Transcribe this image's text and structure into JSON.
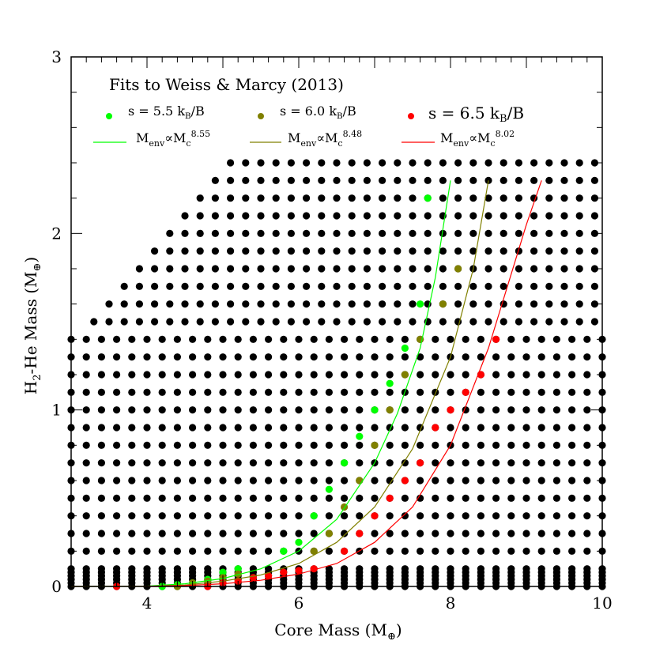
{
  "chart_data": {
    "type": "scatter",
    "title": "Fits to Weiss & Marcy (2013)",
    "xlabel": "Core Mass (M",
    "xlabel_symbol": "⊕",
    "ylabel": "H",
    "ylabel_sub": "2",
    "ylabel_mid": "-He Mass (M",
    "ylabel_symbol": "⊕",
    "xlim": [
      3,
      10
    ],
    "ylim": [
      0,
      3
    ],
    "x_ticks": [
      "4",
      "6",
      "8",
      "10"
    ],
    "x_tick_values": [
      4,
      6,
      8,
      10
    ],
    "y_ticks": [
      "0",
      "1",
      "2",
      "3"
    ],
    "y_tick_values": [
      0,
      1,
      2,
      3
    ],
    "grid_colors": {
      "default": "#000000"
    },
    "grid": {
      "x_step": 0.2,
      "y_step": 0.1,
      "low_y_values": [
        0.0,
        0.02,
        0.04,
        0.06,
        0.08,
        0.1
      ],
      "x_max": 10.0,
      "row_x_start": [
        {
          "y_from": 0.0,
          "y_to": 1.4,
          "x_start": 3.0
        },
        {
          "y_from": 1.5,
          "y_to": 1.5,
          "x_start": 3.3
        },
        {
          "y_from": 1.6,
          "y_to": 1.6,
          "x_start": 3.5
        },
        {
          "y_from": 1.7,
          "y_to": 1.7,
          "x_start": 3.7
        },
        {
          "y_from": 1.8,
          "y_to": 1.8,
          "x_start": 3.9
        },
        {
          "y_from": 1.9,
          "y_to": 1.9,
          "x_start": 4.1
        },
        {
          "y_from": 2.0,
          "y_to": 2.0,
          "x_start": 4.3
        },
        {
          "y_from": 2.1,
          "y_to": 2.1,
          "x_start": 4.5
        },
        {
          "y_from": 2.2,
          "y_to": 2.2,
          "x_start": 4.7
        },
        {
          "y_from": 2.3,
          "y_to": 2.3,
          "x_start": 4.9
        },
        {
          "y_from": 2.4,
          "y_to": 2.4,
          "x_start": 5.1
        }
      ]
    },
    "series": [
      {
        "name": "s = 5.5 k",
        "name_sub": "B",
        "name_tail": "/B",
        "fit_label": "M",
        "fit_label_sub": "env",
        "fit_label_mid": "∝M",
        "fit_label_sub2": "c",
        "fit_label_sup": "8.55",
        "color": "#00ff00",
        "points_x": [
          4.2,
          4.4,
          4.6,
          4.8,
          5.0,
          5.2,
          5.8,
          6.0,
          6.2,
          6.4,
          6.6,
          6.8,
          7.0,
          7.2,
          7.4,
          7.6,
          7.7
        ],
        "points_y": [
          0.0,
          0.01,
          0.02,
          0.04,
          0.08,
          0.1,
          0.2,
          0.25,
          0.4,
          0.55,
          0.7,
          0.85,
          1.0,
          1.15,
          1.35,
          1.6,
          2.2
        ],
        "fit_x": [
          3.0,
          4.0,
          4.5,
          5.0,
          5.5,
          6.0,
          6.5,
          7.0,
          7.3,
          7.6,
          7.8,
          8.0
        ],
        "fit_y": [
          0.0,
          0.002,
          0.015,
          0.045,
          0.1,
          0.2,
          0.38,
          0.7,
          0.98,
          1.35,
          1.75,
          2.3
        ]
      },
      {
        "name": "s = 6.0 k",
        "name_sub": "B",
        "name_tail": "/B",
        "fit_label": "M",
        "fit_label_sub": "env",
        "fit_label_mid": "∝M",
        "fit_label_sub2": "c",
        "fit_label_sup": "8.48",
        "color": "#808000",
        "points_x": [
          4.4,
          4.6,
          4.8,
          5.0,
          5.2,
          6.2,
          6.4,
          6.6,
          6.8,
          7.0,
          7.2,
          7.4,
          7.6,
          7.9,
          8.1
        ],
        "points_y": [
          0.0,
          0.02,
          0.03,
          0.05,
          0.07,
          0.2,
          0.3,
          0.45,
          0.6,
          0.8,
          1.0,
          1.2,
          1.4,
          1.6,
          1.8
        ],
        "fit_x": [
          3.0,
          4.0,
          4.5,
          5.0,
          5.5,
          6.0,
          6.5,
          7.0,
          7.5,
          8.0,
          8.3,
          8.5
        ],
        "fit_y": [
          0.0,
          0.001,
          0.008,
          0.03,
          0.065,
          0.13,
          0.25,
          0.45,
          0.78,
          1.3,
          1.8,
          2.3
        ]
      },
      {
        "name": "s = 6.5 k",
        "name_sub": "B",
        "name_tail": "/B",
        "fit_label": "M",
        "fit_label_sub": "env",
        "fit_label_mid": "∝M",
        "fit_label_sub2": "c",
        "fit_label_sup": "8.02",
        "color": "#ff0000",
        "points_x": [
          3.6,
          4.8,
          5.0,
          5.2,
          5.4,
          5.6,
          5.8,
          6.0,
          6.2,
          6.6,
          6.8,
          7.0,
          7.2,
          7.4,
          7.6,
          7.8,
          8.0,
          8.2,
          8.4,
          8.6
        ],
        "points_y": [
          0.0,
          0.0,
          0.02,
          0.03,
          0.05,
          0.06,
          0.08,
          0.09,
          0.1,
          0.2,
          0.3,
          0.4,
          0.5,
          0.6,
          0.7,
          0.9,
          1.0,
          1.1,
          1.2,
          1.4
        ],
        "fit_x": [
          3.0,
          4.0,
          4.5,
          5.0,
          5.5,
          6.0,
          6.5,
          7.0,
          7.5,
          8.0,
          8.5,
          9.0,
          9.2
        ],
        "fit_y": [
          0.0,
          0.001,
          0.005,
          0.015,
          0.035,
          0.07,
          0.13,
          0.25,
          0.45,
          0.8,
          1.35,
          2.05,
          2.3
        ]
      }
    ],
    "legend_position": "top-left"
  }
}
